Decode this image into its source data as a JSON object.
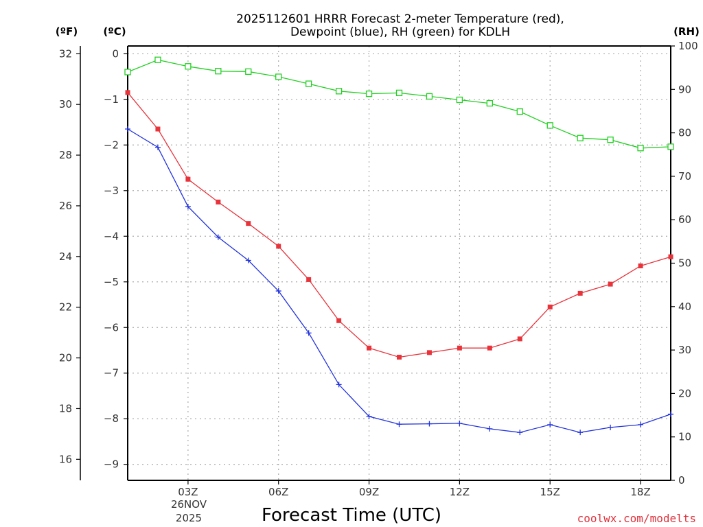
{
  "chart_data": {
    "type": "line",
    "title_lines": [
      "2025112601 HRRR Forecast 2-meter Temperature (red),",
      "Dewpoint (blue), RH (green) for KDLH"
    ],
    "xlabel": "Forecast Time (UTC)",
    "x": [
      1,
      2,
      3,
      4,
      5,
      6,
      7,
      8,
      9,
      10,
      11,
      12,
      13,
      14,
      15,
      16,
      17,
      18,
      19
    ],
    "xlim": [
      1,
      19
    ],
    "x_ticks": [
      {
        "x": 3,
        "label": "03Z"
      },
      {
        "x": 6,
        "label": "06Z"
      },
      {
        "x": 9,
        "label": "09Z"
      },
      {
        "x": 12,
        "label": "12Z"
      },
      {
        "x": 15,
        "label": "15Z"
      },
      {
        "x": 18,
        "label": "18Z"
      }
    ],
    "date_label": [
      "26NOV",
      "2025"
    ],
    "left_axis_c": {
      "unit": "(ºC)",
      "lim": [
        -9.35,
        0.17
      ],
      "ticks": [
        0,
        -1,
        -2,
        -3,
        -4,
        -5,
        -6,
        -7,
        -8,
        -9
      ]
    },
    "left_axis_f": {
      "unit": "(ºF)",
      "ticks": [
        32,
        30,
        28,
        26,
        24,
        22,
        20,
        18,
        16
      ]
    },
    "right_axis_rh": {
      "unit": "(RH)",
      "lim": [
        0,
        100
      ],
      "ticks": [
        0,
        10,
        20,
        30,
        40,
        50,
        60,
        70,
        80,
        90,
        100
      ]
    },
    "grid": true,
    "series": [
      {
        "name": "Temperature",
        "color": "#e8333b",
        "marker": "filled-square",
        "axis": "C",
        "values": [
          -0.85,
          -1.65,
          -2.75,
          -3.25,
          -3.72,
          -4.22,
          -4.95,
          -5.85,
          -6.45,
          -6.65,
          -6.55,
          -6.45,
          -6.45,
          -6.25,
          -5.55,
          -5.25,
          -5.05,
          -4.65,
          -4.45
        ]
      },
      {
        "name": "Dewpoint",
        "color": "#2233dd",
        "marker": "plus",
        "axis": "C",
        "values": [
          -1.65,
          -2.05,
          -3.35,
          -4.02,
          -4.53,
          -5.2,
          -6.12,
          -7.25,
          -7.95,
          -8.12,
          -8.11,
          -8.1,
          -8.22,
          -8.3,
          -8.13,
          -8.3,
          -8.19,
          -8.13,
          -7.9
        ]
      },
      {
        "name": "RH",
        "color": "#22d022",
        "marker": "open-square",
        "axis": "RH",
        "values": [
          94,
          96.8,
          95.3,
          94.2,
          94.1,
          92.9,
          91.3,
          89.6,
          89,
          89.2,
          88.4,
          87.6,
          86.8,
          84.9,
          81.7,
          78.8,
          78.4,
          76.5,
          76.8
        ]
      }
    ],
    "credit": "coolwx.com/modelts"
  }
}
